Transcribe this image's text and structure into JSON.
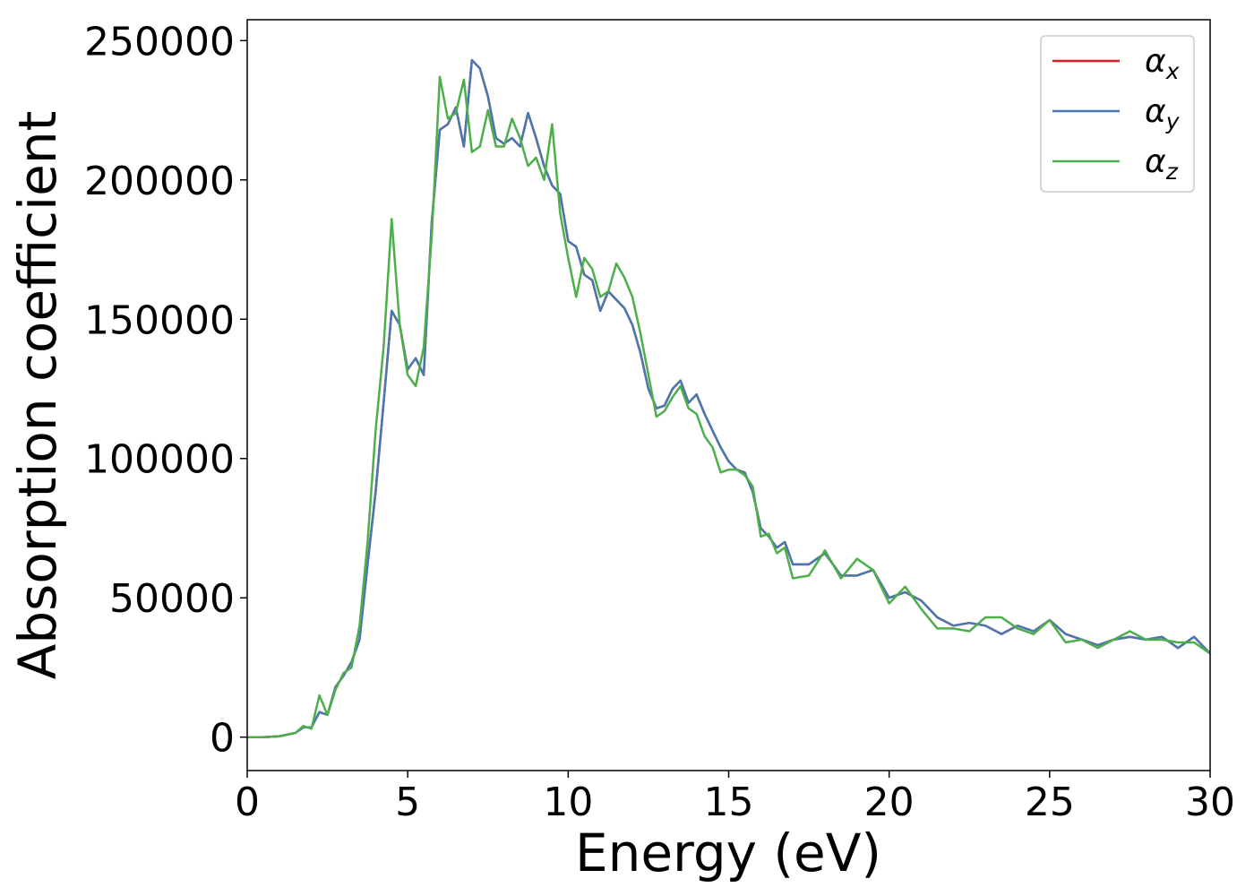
{
  "chart_data": {
    "type": "line",
    "x_label": "Energy (eV)",
    "y_label": "Absorption coefficient",
    "x": [
      0,
      0.5,
      1,
      1.5,
      1.75,
      2,
      2.25,
      2.5,
      2.75,
      3,
      3.25,
      3.5,
      3.75,
      4,
      4.25,
      4.5,
      4.75,
      5,
      5.25,
      5.5,
      5.75,
      6,
      6.25,
      6.5,
      6.75,
      7,
      7.25,
      7.5,
      7.75,
      8,
      8.25,
      8.5,
      8.75,
      9,
      9.25,
      9.5,
      9.75,
      10,
      10.25,
      10.5,
      10.75,
      11,
      11.25,
      11.5,
      11.75,
      12,
      12.25,
      12.5,
      12.75,
      13,
      13.25,
      13.5,
      13.75,
      14,
      14.25,
      14.5,
      14.75,
      15,
      15.25,
      15.5,
      15.75,
      16,
      16.25,
      16.5,
      16.75,
      17,
      17.5,
      18,
      18.5,
      19,
      19.5,
      20,
      20.5,
      21,
      21.5,
      22,
      22.5,
      23,
      23.5,
      24,
      24.5,
      25,
      25.5,
      26,
      26.5,
      27,
      27.5,
      28,
      28.5,
      29,
      29.5,
      30
    ],
    "series": [
      {
        "name": "αx",
        "color": "#e41a1c",
        "values": [
          0,
          0,
          300,
          1500,
          3500,
          3500,
          9000,
          8000,
          18000,
          22000,
          27000,
          35000,
          62000,
          88000,
          120000,
          153000,
          148000,
          132000,
          136000,
          130000,
          185000,
          218000,
          220000,
          226000,
          212000,
          243000,
          240000,
          230000,
          215000,
          213000,
          215000,
          212000,
          224000,
          215000,
          205000,
          198000,
          195000,
          178000,
          176000,
          166000,
          164000,
          153000,
          160000,
          157000,
          154000,
          148000,
          138000,
          125000,
          118000,
          119000,
          125000,
          128000,
          120000,
          123000,
          116000,
          110000,
          104000,
          99000,
          96000,
          95000,
          88000,
          75000,
          72000,
          68000,
          70000,
          62000,
          62000,
          66000,
          58000,
          58000,
          60000,
          50000,
          52000,
          49000,
          43000,
          40000,
          41000,
          40000,
          37000,
          40000,
          38000,
          42000,
          37000,
          35000,
          33000,
          35000,
          36000,
          35000,
          36000,
          32000,
          36000,
          30000
        ]
      },
      {
        "name": "αy",
        "color": "#4878b0",
        "values": [
          0,
          0,
          300,
          1500,
          3500,
          3500,
          9000,
          8000,
          18000,
          22000,
          27000,
          35000,
          62000,
          88000,
          120000,
          153000,
          148000,
          132000,
          136000,
          130000,
          185000,
          218000,
          220000,
          226000,
          212000,
          243000,
          240000,
          230000,
          215000,
          213000,
          215000,
          212000,
          224000,
          215000,
          205000,
          198000,
          195000,
          178000,
          176000,
          166000,
          164000,
          153000,
          160000,
          157000,
          154000,
          148000,
          138000,
          125000,
          118000,
          119000,
          125000,
          128000,
          120000,
          123000,
          116000,
          110000,
          104000,
          99000,
          96000,
          95000,
          88000,
          75000,
          72000,
          68000,
          70000,
          62000,
          62000,
          66000,
          58000,
          58000,
          60000,
          50000,
          52000,
          49000,
          43000,
          40000,
          41000,
          40000,
          37000,
          40000,
          38000,
          42000,
          37000,
          35000,
          33000,
          35000,
          36000,
          35000,
          36000,
          32000,
          36000,
          30000
        ]
      },
      {
        "name": "αz",
        "color": "#4daf4a",
        "values": [
          0,
          0,
          300,
          1500,
          4000,
          3000,
          15000,
          8000,
          17000,
          23000,
          25000,
          40000,
          70000,
          110000,
          140000,
          186000,
          148000,
          130000,
          126000,
          140000,
          180000,
          237000,
          222000,
          224000,
          236000,
          210000,
          212000,
          225000,
          212000,
          212000,
          222000,
          215000,
          205000,
          208000,
          200000,
          220000,
          188000,
          172000,
          158000,
          172000,
          168000,
          158000,
          160000,
          170000,
          165000,
          158000,
          145000,
          130000,
          115000,
          117000,
          122000,
          126000,
          118000,
          116000,
          108000,
          104000,
          95000,
          96000,
          96000,
          94000,
          90000,
          72000,
          73000,
          66000,
          68000,
          57000,
          58000,
          67000,
          57000,
          64000,
          60000,
          48000,
          54000,
          46000,
          39000,
          39000,
          38000,
          43000,
          43000,
          39000,
          37000,
          42000,
          34000,
          35000,
          32000,
          35000,
          38000,
          35000,
          35000,
          34000,
          34000,
          30000
        ]
      }
    ],
    "xlim": [
      0,
      30
    ],
    "ylim": [
      -12000,
      257500
    ],
    "xticks": [
      0,
      5,
      10,
      15,
      20,
      25,
      30
    ],
    "yticks": [
      0,
      50000,
      100000,
      150000,
      200000,
      250000
    ],
    "legend": "upper right"
  }
}
